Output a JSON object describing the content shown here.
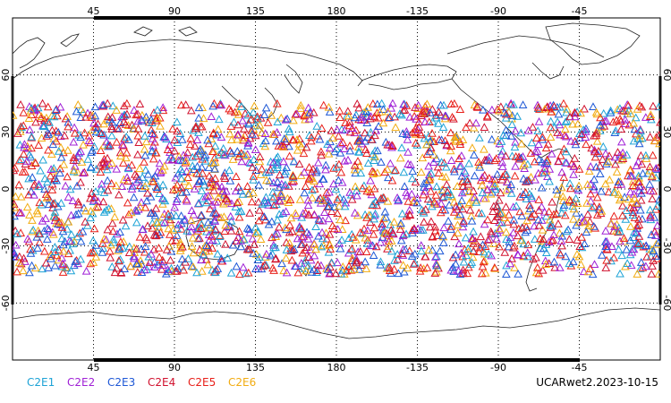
{
  "map": {
    "lon_center": 180,
    "lon_range": [
      0,
      360
    ],
    "lat_range": [
      -90,
      90
    ],
    "grid_lon_step": 45,
    "grid_lat_step": 30,
    "grid": true,
    "grid_style": "dotted",
    "coastlines": true,
    "lon_tick_labels": [
      "45",
      "90",
      "135",
      "180",
      "-135",
      "-90",
      "-45"
    ],
    "lat_tick_labels": [
      "60",
      "30",
      "0",
      "-30",
      "-60"
    ],
    "marker_shape": "open-triangle",
    "occultation_lat_band": [
      -45,
      45
    ],
    "points_per_satellite": 420
  },
  "legend": [
    {
      "label": "C2E1",
      "color": "#1ea3d6"
    },
    {
      "label": "C2E2",
      "color": "#a021d6"
    },
    {
      "label": "C2E3",
      "color": "#1e58d6"
    },
    {
      "label": "C2E4",
      "color": "#d1122f"
    },
    {
      "label": "C2E5",
      "color": "#e8201a"
    },
    {
      "label": "C2E6",
      "color": "#f2ac12"
    }
  ],
  "caption": "UCARwet2.2023-10-15"
}
